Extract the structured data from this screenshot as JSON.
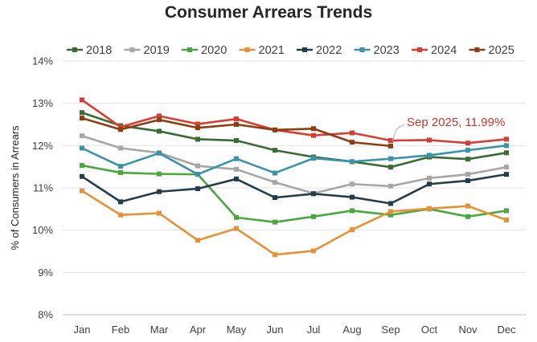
{
  "chart_data": {
    "type": "line",
    "title": "Consumer Arrears Trends",
    "ylabel": "% of Consumers in Arrears",
    "xlabel": "",
    "categories": [
      "Jan",
      "Feb",
      "Mar",
      "Apr",
      "May",
      "Jun",
      "Jul",
      "Aug",
      "Sep",
      "Oct",
      "Nov",
      "Dec"
    ],
    "ylim": [
      8,
      14
    ],
    "yticks": [
      8,
      9,
      10,
      11,
      12,
      13,
      14
    ],
    "ytick_labels": [
      "8%",
      "9%",
      "10%",
      "11%",
      "12%",
      "13%",
      "14%"
    ],
    "grid": "horizontal",
    "legend_position": "top",
    "series": [
      {
        "name": "2018",
        "color": "#3a6b35",
        "values": [
          12.78,
          12.47,
          12.34,
          12.15,
          12.12,
          11.89,
          11.73,
          11.62,
          11.49,
          11.73,
          11.68,
          11.83
        ]
      },
      {
        "name": "2019",
        "color": "#a6a6a6",
        "values": [
          12.23,
          11.94,
          11.83,
          11.52,
          11.44,
          11.13,
          10.87,
          11.09,
          11.04,
          11.23,
          11.32,
          11.49
        ]
      },
      {
        "name": "2020",
        "color": "#4aa83f",
        "values": [
          11.53,
          11.36,
          11.33,
          11.32,
          10.3,
          10.19,
          10.32,
          10.46,
          10.36,
          10.5,
          10.32,
          10.46
        ]
      },
      {
        "name": "2021",
        "color": "#e69138",
        "values": [
          10.93,
          10.36,
          10.4,
          9.76,
          10.04,
          9.42,
          9.51,
          10.01,
          10.44,
          10.51,
          10.57,
          10.24
        ]
      },
      {
        "name": "2022",
        "color": "#243d4a",
        "values": [
          11.27,
          10.67,
          10.91,
          10.98,
          11.21,
          10.77,
          10.86,
          10.78,
          10.63,
          11.09,
          11.17,
          11.32
        ]
      },
      {
        "name": "2023",
        "color": "#3c93a8",
        "values": [
          11.94,
          11.51,
          11.82,
          11.32,
          11.69,
          11.35,
          11.7,
          11.62,
          11.69,
          11.77,
          11.89,
          12.0
        ]
      },
      {
        "name": "2024",
        "color": "#d63d33",
        "values": [
          13.08,
          12.44,
          12.7,
          12.51,
          12.63,
          12.37,
          12.24,
          12.3,
          12.12,
          12.13,
          12.06,
          12.15
        ]
      },
      {
        "name": "2025",
        "color": "#8b3f12",
        "values": [
          12.65,
          12.38,
          12.61,
          12.42,
          12.5,
          12.37,
          12.4,
          12.08,
          11.99,
          null,
          null,
          null
        ]
      }
    ],
    "annotations": [
      {
        "text": "Sep 2025, 11.99%",
        "series": "2025",
        "category": "Sep",
        "value": 11.99,
        "color": "#c0392b"
      }
    ]
  }
}
